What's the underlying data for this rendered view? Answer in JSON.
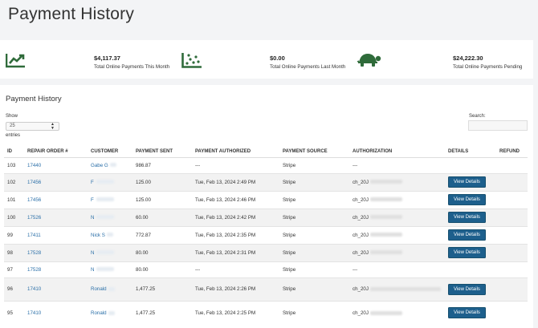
{
  "page": {
    "title": "Payment History"
  },
  "stats": [
    {
      "icon": "trending-up-chart-icon",
      "value": "$4,117.37",
      "label": "Total Online Payments This Month"
    },
    {
      "icon": "scatter-chart-icon",
      "value": "$0.00",
      "label": "Total Online Payments Last Month"
    },
    {
      "icon": "turtle-icon",
      "value": "$24,222.30",
      "label": "Total Online Payments Pending"
    }
  ],
  "panel": {
    "title": "Payment History",
    "show_label": "Show",
    "entries_value": "25",
    "entries_label": "entries",
    "search_label": "Search:",
    "search_value": ""
  },
  "table": {
    "columns": [
      "ID",
      "REPAIR ORDER #",
      "CUSTOMER",
      "PAYMENT SENT",
      "PAYMENT AUTHORIZED",
      "PAYMENT SOURCE",
      "AUTHORIZATION",
      "DETAILS",
      "REFUND"
    ],
    "button_label": "View Details",
    "rows": [
      {
        "id": "103",
        "ro": "17440",
        "customer": "Gabe G",
        "sent": "986.87",
        "authorized": "---",
        "source": "Stripe",
        "authorization": "---",
        "details": false
      },
      {
        "id": "102",
        "ro": "17456",
        "customer": "F",
        "sent": "125.00",
        "authorized": "Tue, Feb 13, 2024 2:49 PM",
        "source": "Stripe",
        "authorization": "ch_20J",
        "details": true
      },
      {
        "id": "101",
        "ro": "17456",
        "customer": "F",
        "sent": "125.00",
        "authorized": "Tue, Feb 13, 2024 2:46 PM",
        "source": "Stripe",
        "authorization": "ch_20J",
        "details": true
      },
      {
        "id": "100",
        "ro": "17526",
        "customer": "N",
        "sent": "60.00",
        "authorized": "Tue, Feb 13, 2024 2:42 PM",
        "source": "Stripe",
        "authorization": "ch_20J",
        "details": true
      },
      {
        "id": "99",
        "ro": "17411",
        "customer": "Nick S",
        "sent": "772.87",
        "authorized": "Tue, Feb 13, 2024 2:35 PM",
        "source": "Stripe",
        "authorization": "ch_20J",
        "details": true
      },
      {
        "id": "98",
        "ro": "17528",
        "customer": "N",
        "sent": "80.00",
        "authorized": "Tue, Feb 13, 2024 2:31 PM",
        "source": "Stripe",
        "authorization": "ch_20J",
        "details": true
      },
      {
        "id": "97",
        "ro": "17528",
        "customer": "N",
        "sent": "80.00",
        "authorized": "---",
        "source": "Stripe",
        "authorization": "---",
        "details": false
      },
      {
        "id": "96",
        "ro": "17410",
        "customer": "Ronald",
        "sent": "1,477.25",
        "authorized": "Tue, Feb 13, 2024 2:26 PM",
        "source": "Stripe",
        "authorization": "ch_20J",
        "details": true
      },
      {
        "id": "95",
        "ro": "17410",
        "customer": "Ronald",
        "sent": "1,477.25",
        "authorized": "Tue, Feb 13, 2024 2:25 PM",
        "source": "Stripe",
        "authorization": "ch_20J",
        "details": true
      }
    ]
  },
  "colors": {
    "accent": "#1d5f8c",
    "link": "#2a6fa8",
    "icon": "#2f6b3a"
  }
}
